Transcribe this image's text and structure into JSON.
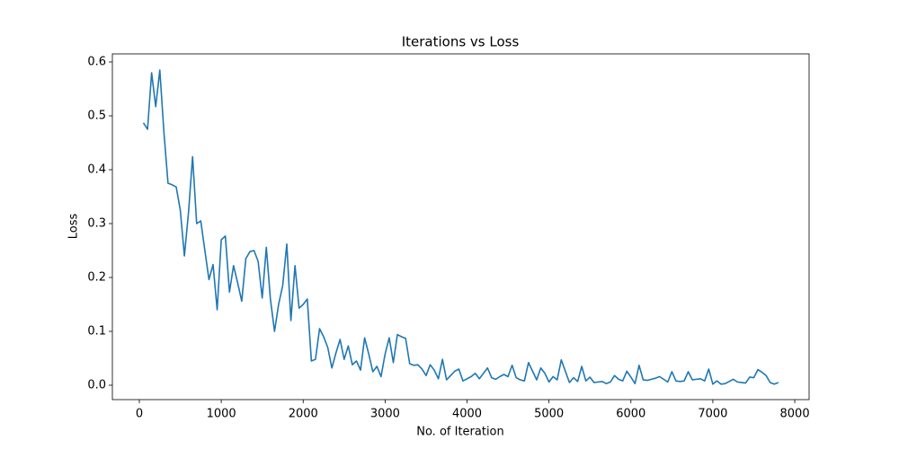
{
  "chart_data": {
    "type": "line",
    "title": "Iterations vs Loss",
    "xlabel": "No. of Iteration",
    "ylabel": "Loss",
    "x": [
      50,
      100,
      150,
      200,
      250,
      300,
      350,
      400,
      450,
      500,
      550,
      600,
      650,
      700,
      750,
      800,
      850,
      900,
      950,
      1000,
      1050,
      1100,
      1150,
      1200,
      1250,
      1300,
      1350,
      1400,
      1450,
      1500,
      1550,
      1600,
      1650,
      1700,
      1750,
      1800,
      1850,
      1900,
      1950,
      2000,
      2050,
      2100,
      2150,
      2200,
      2250,
      2300,
      2350,
      2400,
      2450,
      2500,
      2550,
      2600,
      2650,
      2700,
      2750,
      2800,
      2850,
      2900,
      2950,
      3000,
      3050,
      3100,
      3150,
      3200,
      3250,
      3300,
      3350,
      3400,
      3450,
      3500,
      3550,
      3600,
      3650,
      3700,
      3750,
      3800,
      3850,
      3900,
      3950,
      4000,
      4050,
      4100,
      4150,
      4200,
      4250,
      4300,
      4350,
      4400,
      4450,
      4500,
      4550,
      4600,
      4650,
      4700,
      4750,
      4800,
      4850,
      4900,
      4950,
      5000,
      5050,
      5100,
      5150,
      5200,
      5250,
      5300,
      5350,
      5400,
      5450,
      5500,
      5550,
      5600,
      5650,
      5700,
      5750,
      5800,
      5850,
      5900,
      5950,
      6000,
      6050,
      6100,
      6150,
      6200,
      6250,
      6300,
      6350,
      6400,
      6450,
      6500,
      6550,
      6600,
      6650,
      6700,
      6750,
      6800,
      6850,
      6900,
      6950,
      7000,
      7050,
      7100,
      7150,
      7200,
      7250,
      7300,
      7350,
      7400,
      7450,
      7500,
      7550,
      7600,
      7650,
      7700,
      7750,
      7800
    ],
    "series": [
      {
        "name": "Loss",
        "color": "#1f77b4",
        "values": [
          0.487,
          0.475,
          0.58,
          0.517,
          0.585,
          0.47,
          0.375,
          0.372,
          0.368,
          0.325,
          0.24,
          0.32,
          0.424,
          0.3,
          0.305,
          0.25,
          0.196,
          0.224,
          0.14,
          0.27,
          0.277,
          0.173,
          0.222,
          0.19,
          0.156,
          0.235,
          0.248,
          0.25,
          0.23,
          0.162,
          0.256,
          0.16,
          0.1,
          0.15,
          0.185,
          0.262,
          0.12,
          0.222,
          0.143,
          0.15,
          0.16,
          0.045,
          0.048,
          0.105,
          0.09,
          0.07,
          0.032,
          0.06,
          0.085,
          0.048,
          0.073,
          0.038,
          0.045,
          0.028,
          0.088,
          0.058,
          0.025,
          0.035,
          0.016,
          0.058,
          0.088,
          0.042,
          0.094,
          0.09,
          0.087,
          0.04,
          0.037,
          0.038,
          0.03,
          0.018,
          0.038,
          0.028,
          0.012,
          0.048,
          0.01,
          0.018,
          0.026,
          0.03,
          0.008,
          0.012,
          0.016,
          0.022,
          0.012,
          0.022,
          0.032,
          0.014,
          0.011,
          0.016,
          0.02,
          0.016,
          0.037,
          0.014,
          0.01,
          0.008,
          0.042,
          0.026,
          0.01,
          0.032,
          0.022,
          0.006,
          0.016,
          0.01,
          0.047,
          0.026,
          0.005,
          0.014,
          0.007,
          0.035,
          0.008,
          0.015,
          0.005,
          0.006,
          0.007,
          0.003,
          0.006,
          0.018,
          0.011,
          0.008,
          0.026,
          0.015,
          0.003,
          0.037,
          0.01,
          0.009,
          0.011,
          0.013,
          0.016,
          0.011,
          0.006,
          0.025,
          0.008,
          0.007,
          0.008,
          0.025,
          0.01,
          0.011,
          0.012,
          0.008,
          0.03,
          0.002,
          0.008,
          0.002,
          0.003,
          0.007,
          0.011,
          0.006,
          0.005,
          0.004,
          0.015,
          0.014,
          0.029,
          0.024,
          0.018,
          0.005,
          0.002,
          0.005
        ]
      }
    ],
    "xlim": [
      -329,
      8175
    ],
    "ylim": [
      -0.0267,
      0.615
    ],
    "xticks": [
      0,
      1000,
      2000,
      3000,
      4000,
      5000,
      6000,
      7000,
      8000
    ],
    "yticks": [
      {
        "value": 0,
        "label": "0.0"
      },
      0.1,
      0.2,
      0.3,
      0.4,
      0.5,
      0.6
    ],
    "grid": false
  }
}
